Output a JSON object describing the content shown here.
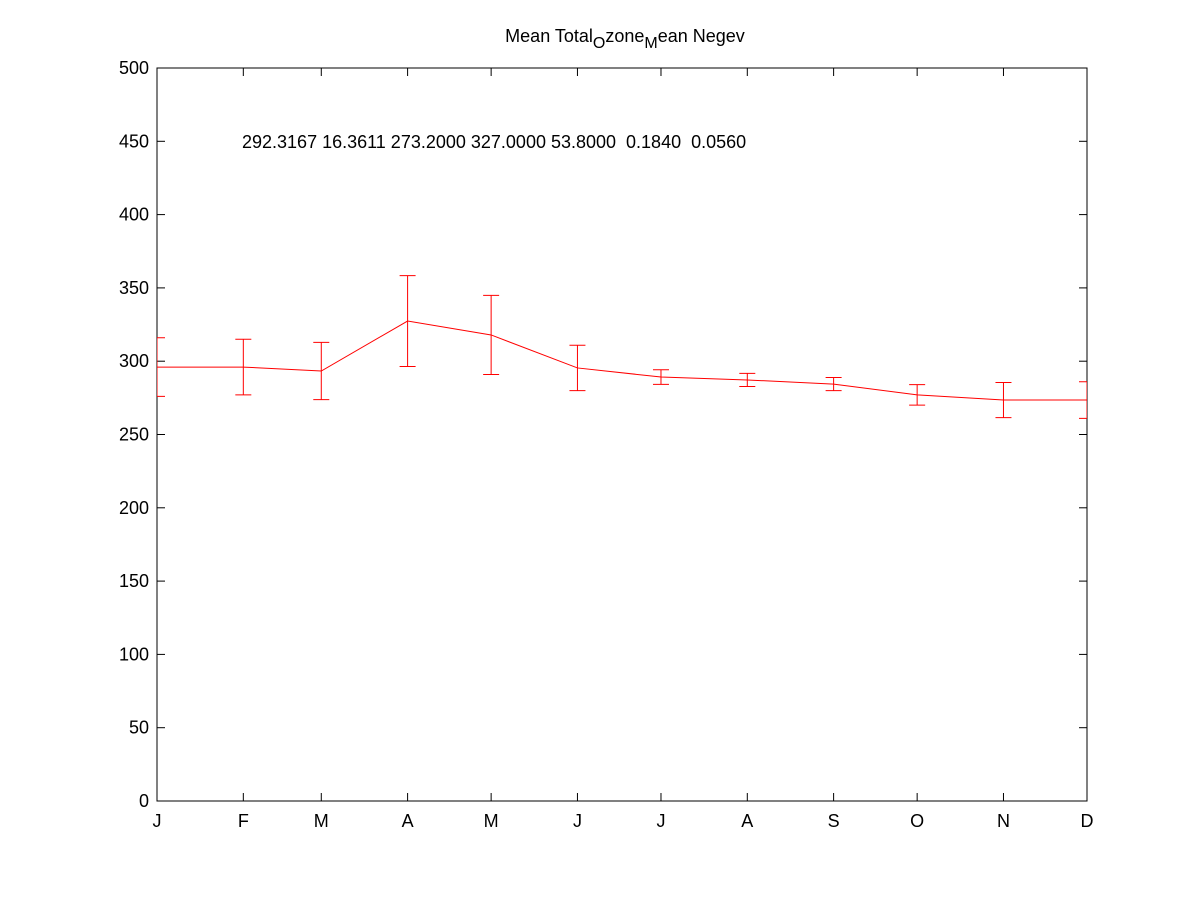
{
  "chart_data": {
    "type": "errorbar",
    "title": [
      "Mean Total",
      "O",
      "zone",
      "M",
      "ean Negev"
    ],
    "annotation": "292.3167 16.3611 273.2000 327.0000 53.8000  0.1840  0.0560",
    "x": [
      1,
      32,
      60,
      91,
      121,
      152,
      182,
      213,
      244,
      274,
      305,
      335
    ],
    "series": [
      {
        "color": "#ff0000",
        "values": [
          296,
          296,
          293.3,
          327.4,
          317.9,
          295.4,
          289.2,
          287.2,
          284.4,
          277,
          273.5,
          273.5
        ],
        "errors": [
          20,
          19,
          19.5,
          31,
          27,
          15.5,
          5,
          4.5,
          4.5,
          7,
          12,
          12.5
        ]
      }
    ],
    "xlim": [
      1,
      335
    ],
    "xticks": [
      {
        "value": 1,
        "label": "J"
      },
      {
        "value": 32,
        "label": "F"
      },
      {
        "value": 60,
        "label": "M"
      },
      {
        "value": 91,
        "label": "A"
      },
      {
        "value": 121,
        "label": "M"
      },
      {
        "value": 152,
        "label": "J"
      },
      {
        "value": 182,
        "label": "J"
      },
      {
        "value": 213,
        "label": "A"
      },
      {
        "value": 244,
        "label": "S"
      },
      {
        "value": 274,
        "label": "O"
      },
      {
        "value": 305,
        "label": "N"
      },
      {
        "value": 335,
        "label": "D"
      }
    ],
    "ylim": [
      0,
      500
    ],
    "yticks": [
      0,
      50,
      100,
      150,
      200,
      250,
      300,
      350,
      400,
      450,
      500
    ]
  }
}
